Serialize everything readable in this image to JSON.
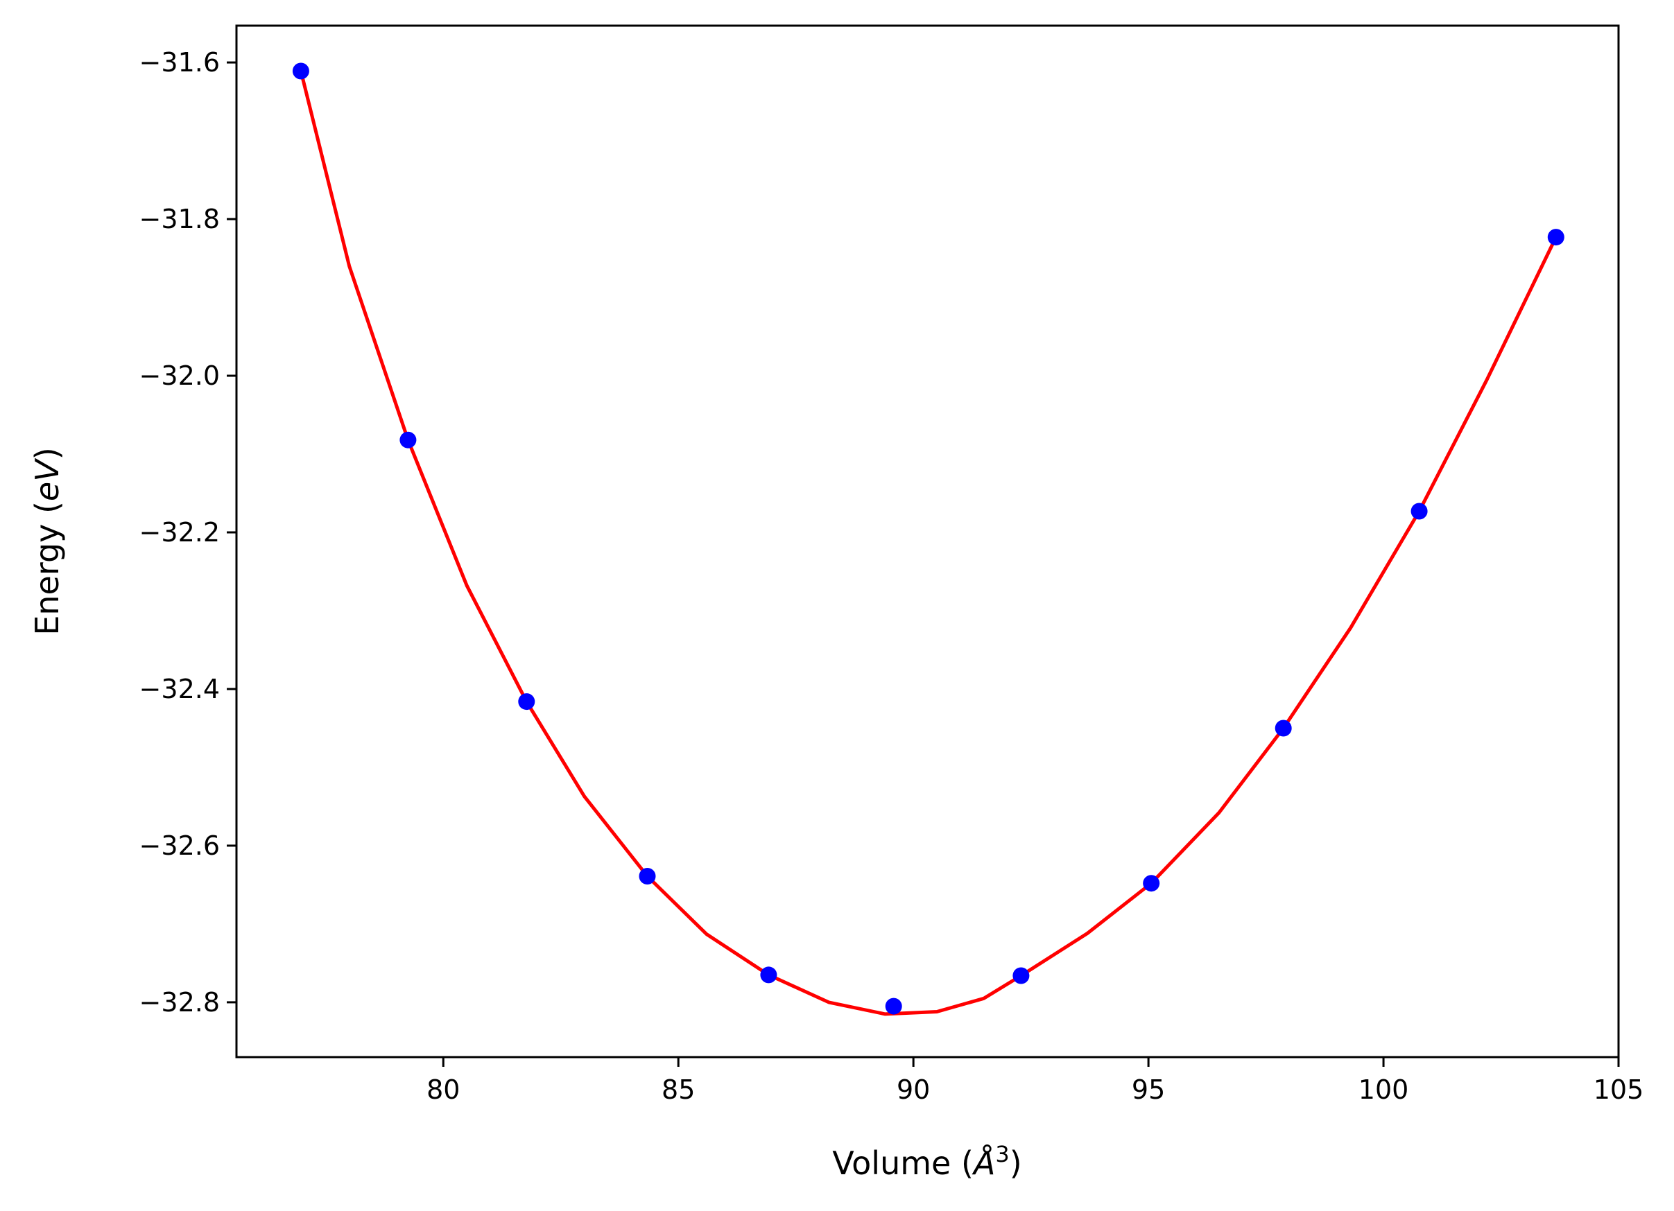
{
  "chart_data": {
    "type": "scatter",
    "title": "",
    "xlabel": "Volume",
    "xlabel_unit_base": "Å",
    "xlabel_unit_exp": "3",
    "ylabel": "Energy",
    "ylabel_unit": "eV",
    "xlim": [
      75.6,
      105.0
    ],
    "ylim": [
      -32.87,
      -31.553
    ],
    "xticks": [
      80,
      85,
      90,
      95,
      100,
      105
    ],
    "xtick_labels": [
      "80",
      "85",
      "90",
      "95",
      "100",
      "105"
    ],
    "yticks": [
      -31.6,
      -31.8,
      -32.0,
      -32.2,
      -32.4,
      -32.6,
      -32.8
    ],
    "ytick_labels": [
      "−31.6",
      "−31.8",
      "−32.0",
      "−32.2",
      "−32.4",
      "−32.6",
      "−32.8"
    ],
    "grid": false,
    "series": [
      {
        "kind": "points",
        "color": "#0000ff",
        "x": [
          76.97,
          79.25,
          81.77,
          84.34,
          86.92,
          89.58,
          92.29,
          95.06,
          97.87,
          100.76,
          103.67
        ],
        "y": [
          -31.611,
          -32.082,
          -32.416,
          -32.639,
          -32.765,
          -32.805,
          -32.766,
          -32.648,
          -32.45,
          -32.173,
          -31.823
        ]
      },
      {
        "kind": "line",
        "color": "#ff0000",
        "x": [
          76.97,
          78.0,
          79.25,
          80.5,
          81.77,
          83.0,
          84.34,
          85.6,
          86.92,
          88.2,
          89.4,
          90.5,
          91.5,
          92.29,
          93.7,
          95.06,
          96.5,
          97.87,
          99.3,
          100.76,
          102.2,
          103.67
        ],
        "y": [
          -31.611,
          -31.86,
          -32.082,
          -32.268,
          -32.416,
          -32.537,
          -32.639,
          -32.713,
          -32.765,
          -32.8,
          -32.815,
          -32.812,
          -32.795,
          -32.766,
          -32.712,
          -32.648,
          -32.558,
          -32.45,
          -32.322,
          -32.173,
          -32.005,
          -31.823
        ]
      }
    ]
  }
}
